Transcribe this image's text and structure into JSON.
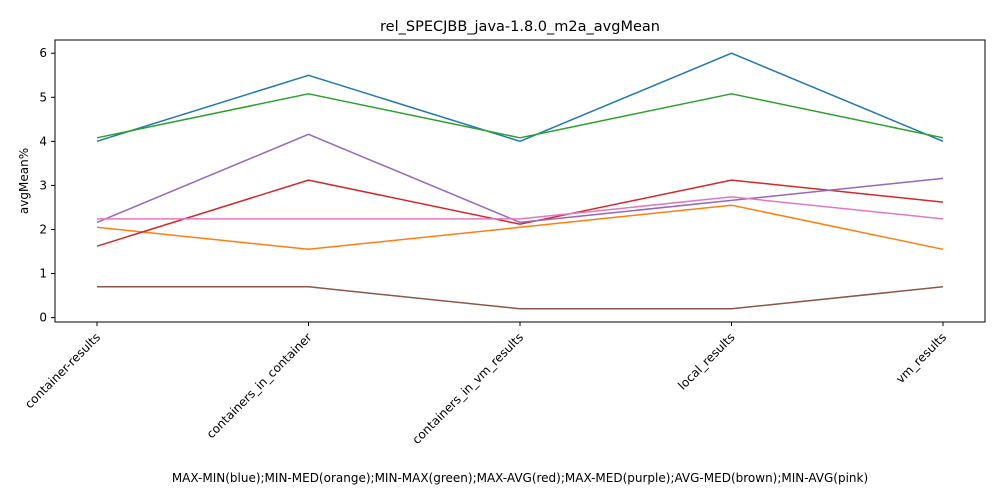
{
  "chart_data": {
    "type": "line",
    "title": "rel_SPECJBB_java-1.8.0_m2a_avgMean",
    "xlabel": "MAX-MIN(blue);MIN-MED(orange);MIN-MAX(green);MAX-AVG(red);MAX-MED(purple);AVG-MED(brown);MIN-AVG(pink)",
    "ylabel": "avgMean%",
    "categories": [
      "container-results",
      "containers_in_container",
      "containers_in_vm_results",
      "local_results",
      "vm_results"
    ],
    "ylim": [
      -0.1,
      6.3
    ],
    "yticks": [
      0,
      1,
      2,
      3,
      4,
      5,
      6
    ],
    "grid": false,
    "series": [
      {
        "color": "#1f77b4",
        "values": [
          4.0,
          5.5,
          4.0,
          6.0,
          4.0
        ]
      },
      {
        "color": "#ff7f0e",
        "values": [
          2.05,
          1.55,
          2.05,
          2.55,
          1.55
        ]
      },
      {
        "color": "#2ca02c",
        "values": [
          4.08,
          5.08,
          4.08,
          5.08,
          4.08
        ]
      },
      {
        "color": "#d62728",
        "values": [
          1.62,
          3.12,
          2.12,
          3.12,
          2.62
        ]
      },
      {
        "color": "#9467bd",
        "values": [
          2.16,
          4.16,
          2.16,
          2.66,
          3.16
        ]
      },
      {
        "color": "#8c564b",
        "values": [
          0.7,
          0.7,
          0.2,
          0.2,
          0.7
        ]
      },
      {
        "color": "#e377c2",
        "values": [
          2.24,
          2.24,
          2.24,
          2.74,
          2.24
        ]
      }
    ]
  }
}
